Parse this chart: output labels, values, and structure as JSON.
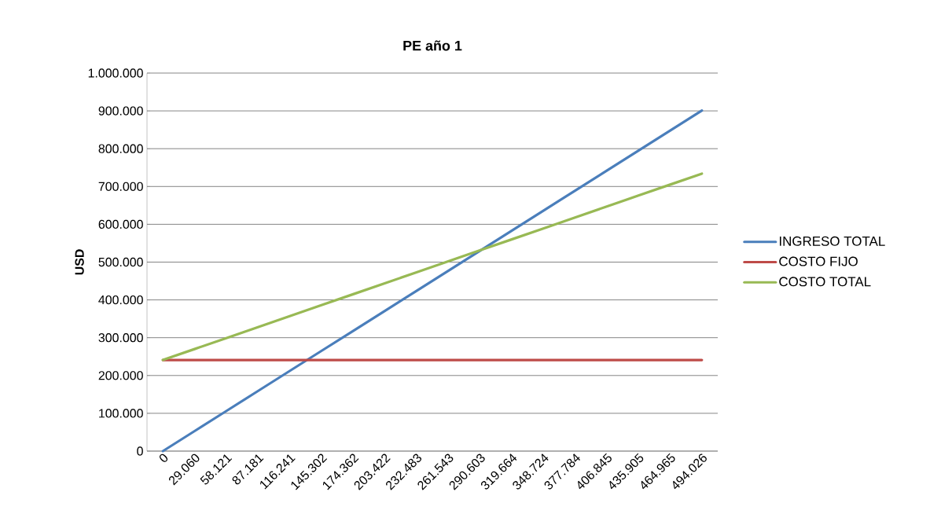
{
  "chart_data": {
    "type": "line",
    "title": "PE año 1",
    "ylabel": "USD",
    "categories": [
      "0",
      "29.060",
      "58.121",
      "87.181",
      "116.241",
      "145.302",
      "174.362",
      "203.422",
      "232.483",
      "261.543",
      "290.603",
      "319.664",
      "348.724",
      "377.784",
      "406.845",
      "435.905",
      "464.965",
      "494.026"
    ],
    "series": [
      {
        "name": "INGRESO TOTAL",
        "color": "#4a7ebb",
        "values": [
          0,
          53000,
          106000,
          159000,
          212000,
          265000,
          318000,
          371000,
          424000,
          477000,
          530000,
          583000,
          636000,
          689000,
          742000,
          795000,
          848000,
          901000
        ]
      },
      {
        "name": "COSTO FIJO",
        "color": "#be4b48",
        "values": [
          241000,
          241000,
          241000,
          241000,
          241000,
          241000,
          241000,
          241000,
          241000,
          241000,
          241000,
          241000,
          241000,
          241000,
          241000,
          241000,
          241000,
          241000
        ]
      },
      {
        "name": "COSTO TOTAL",
        "color": "#98b954",
        "values": [
          241000,
          270000,
          299000,
          328000,
          357000,
          386000,
          415000,
          444000,
          473000,
          502000,
          531000,
          560000,
          589000,
          618000,
          647000,
          676000,
          705000,
          734000
        ]
      }
    ],
    "ylim": [
      0,
      1000000
    ],
    "yticks": [
      0,
      {
        "value": 100000,
        "label": "100.000"
      },
      {
        "value": 200000,
        "label": "200.000"
      },
      {
        "value": 300000,
        "label": "300.000"
      },
      {
        "value": 400000,
        "label": "400.000"
      },
      {
        "value": 500000,
        "label": "500.000"
      },
      {
        "value": 600000,
        "label": "600.000"
      },
      {
        "value": 700000,
        "label": "700.000"
      },
      {
        "value": 800000,
        "label": "800.000"
      },
      {
        "value": 900000,
        "label": "900.000"
      },
      {
        "value": 1000000,
        "label": "1.000.000"
      }
    ],
    "grid": "y",
    "legend": "right",
    "marker": "none",
    "line_style": "solid"
  }
}
